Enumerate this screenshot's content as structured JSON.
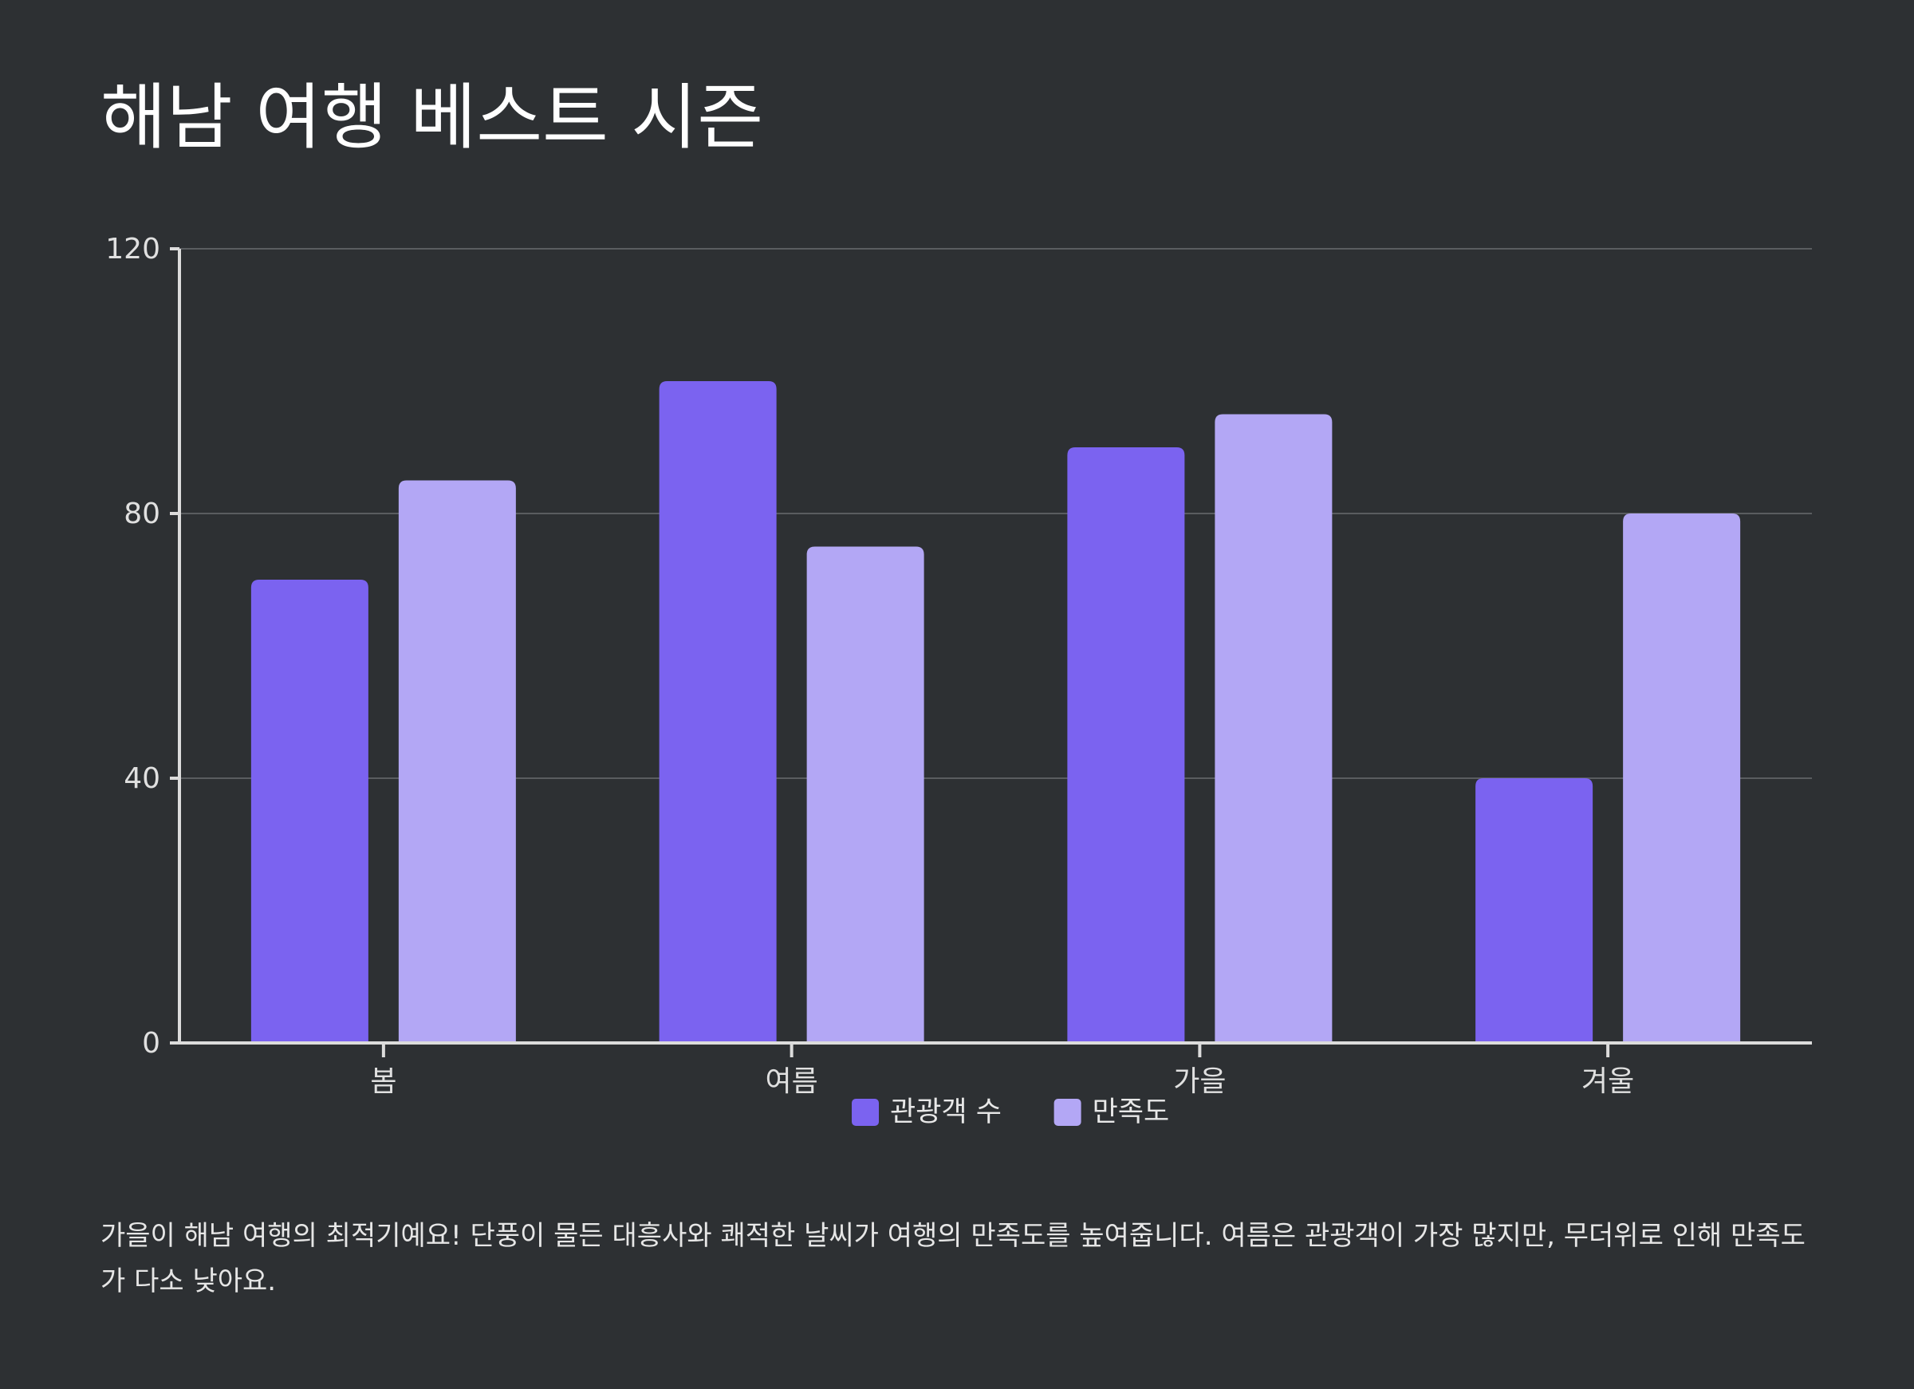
{
  "title": "해남 여행 베스트 시즌",
  "caption": "가을이 해남 여행의 최적기예요! 단풍이 물든 대흥사와 쾌적한 날씨가 여행의 만족도를 높여줍니다. 여름은 관광객이 가장 많지만, 무더위로 인해 만족도가 다소 낮아요.",
  "chart_data": {
    "type": "bar",
    "title": "해남 여행 베스트 시즌",
    "xlabel": "",
    "ylabel": "",
    "categories": [
      "봄",
      "여름",
      "가을",
      "겨울"
    ],
    "series": [
      {
        "name": "관광객 수",
        "values": [
          70,
          100,
          90,
          40
        ],
        "color": "#7b63f0"
      },
      {
        "name": "만족도",
        "values": [
          85,
          75,
          95,
          80
        ],
        "color": "#b3a7f5"
      }
    ],
    "ylim": [
      0,
      120
    ],
    "yticks": [
      0,
      40,
      80,
      120
    ],
    "grid": true,
    "legend": "bottom-center"
  },
  "colors": {
    "background": "#2d3033",
    "axis": "#dcdcdc",
    "grid": "#5a5d60"
  }
}
